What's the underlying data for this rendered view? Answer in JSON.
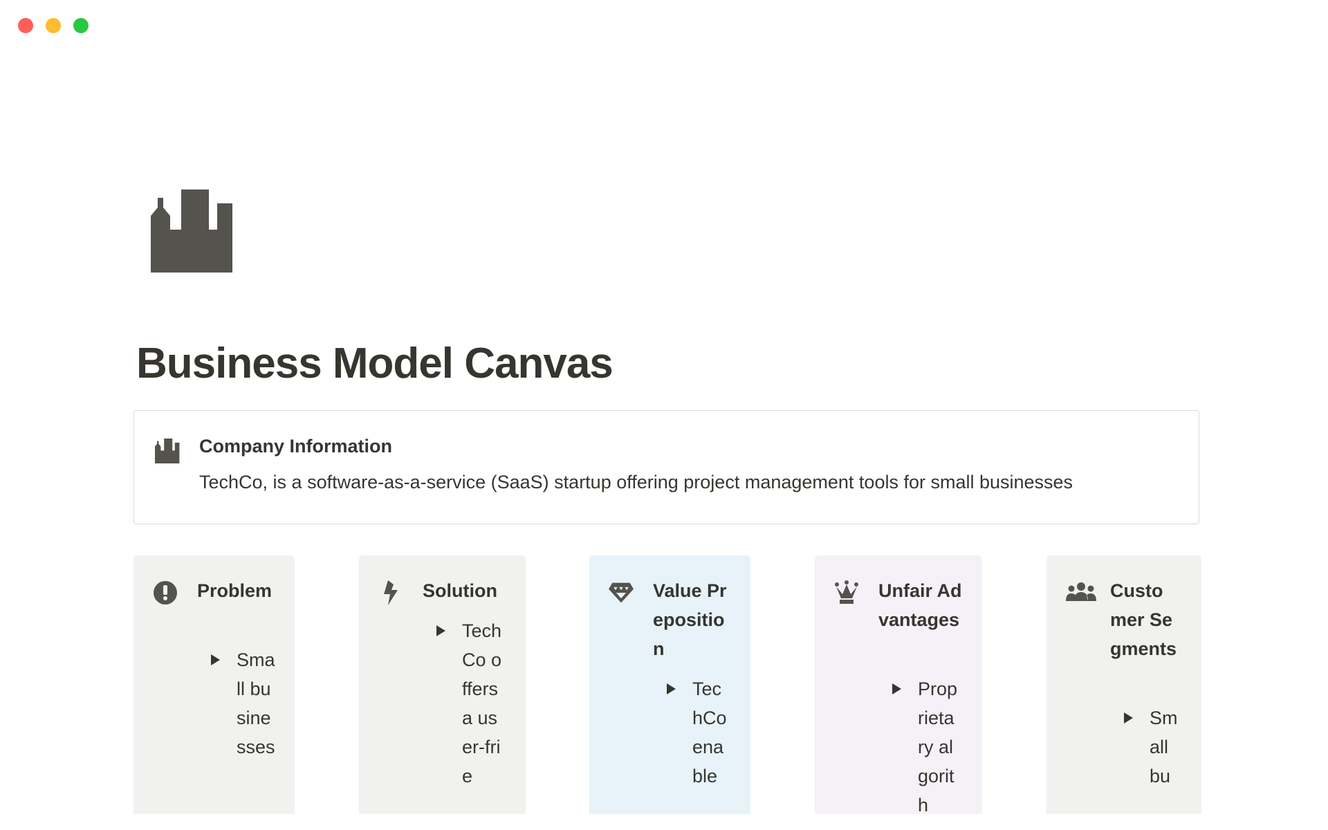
{
  "window": {
    "controls": [
      "close",
      "minimize",
      "maximize"
    ],
    "colors": {
      "close": "#ff5f57",
      "minimize": "#febc2e",
      "maximize": "#28c840"
    }
  },
  "page": {
    "icon": "factory-icon",
    "title": "Business Model Canvas"
  },
  "callout": {
    "icon": "factory-icon",
    "title": "Company Information",
    "text": "TechCo, is a software-as-a-service (SaaS) startup offering project management tools for small businesses"
  },
  "cards": [
    {
      "icon": "exclamation-circle-icon",
      "title": "Problem",
      "item": "Small businesses",
      "bg": "#f1f1ef"
    },
    {
      "icon": "lightning-bolt-icon",
      "title": "Solution",
      "item": "TechCo offers a user-frie",
      "bg": "#f1f1ef"
    },
    {
      "icon": "diamond-icon",
      "title": "Value Preposition",
      "item": "TechCo enable",
      "bg": "#e7f3f8"
    },
    {
      "icon": "crown-icon",
      "title": "Unfair Advantages",
      "item": "Proprietary algorith",
      "bg": "#f4f2f7"
    },
    {
      "icon": "people-group-icon",
      "title": "Customer Segments",
      "item": "Small bu",
      "bg": "#f1f1ef"
    }
  ]
}
